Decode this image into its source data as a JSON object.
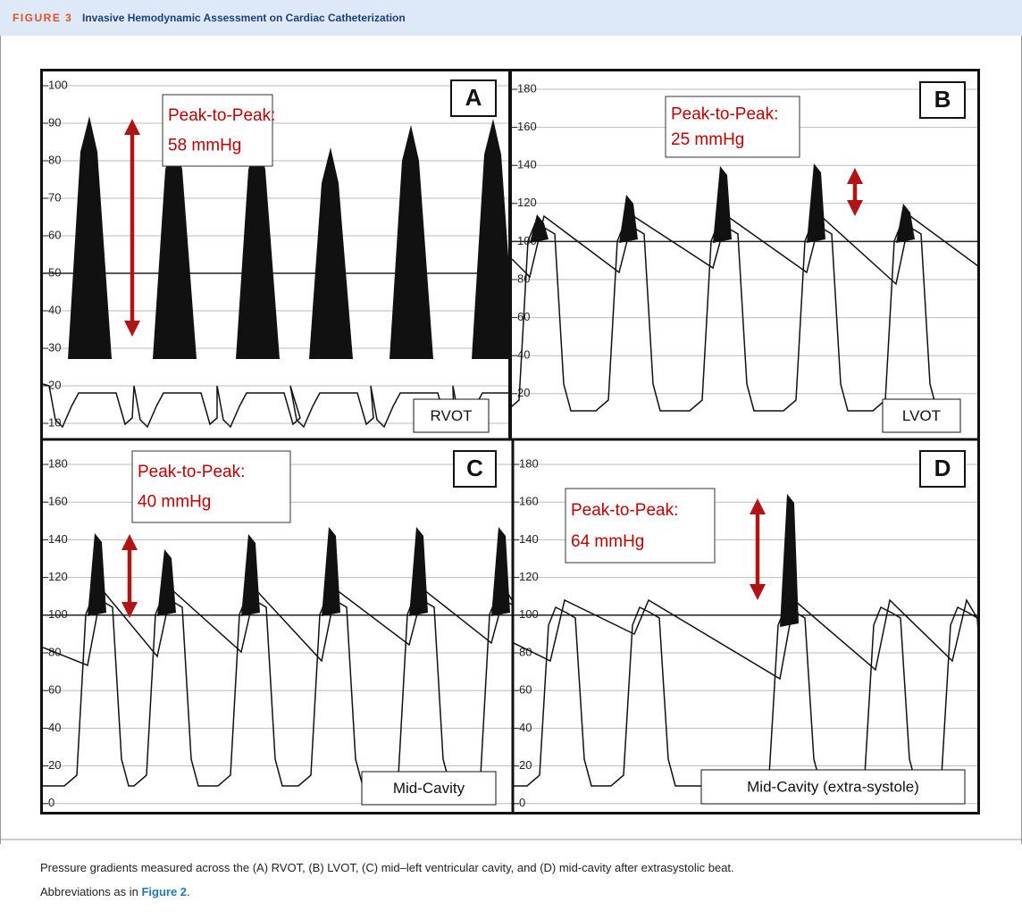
{
  "header": {
    "label": "FIGURE 3",
    "title": "Invasive Hemodynamic Assessment on Cardiac Catheterization"
  },
  "panels": [
    {
      "letter": "A",
      "annotation": [
        "Peak-to-Peak:",
        "58 mmHg"
      ],
      "label": "RVOT",
      "ticks": [
        "100",
        "90",
        "80",
        "70",
        "60",
        "50",
        "40",
        "30",
        "20",
        "10"
      ]
    },
    {
      "letter": "B",
      "annotation": [
        "Peak-to-Peak:",
        "25 mmHg"
      ],
      "label": "LVOT",
      "ticks": [
        "180",
        "160",
        "140",
        "120",
        "100",
        "80",
        "60",
        "40",
        "20"
      ]
    },
    {
      "letter": "C",
      "annotation": [
        "Peak-to-Peak:",
        "40 mmHg"
      ],
      "label": "Mid-Cavity",
      "ticks": [
        "180",
        "160",
        "140",
        "120",
        "100",
        "80",
        "60",
        "40",
        "20",
        "0"
      ]
    },
    {
      "letter": "D",
      "annotation": [
        "Peak-to-Peak:",
        "64 mmHg"
      ],
      "label": "Mid-Cavity (extra-systole)",
      "ticks": [
        "180",
        "160",
        "140",
        "120",
        "100",
        "80",
        "60",
        "40",
        "20",
        "0"
      ]
    }
  ],
  "caption": {
    "text": "Pressure gradients measured across the (A) RVOT, (B) LVOT, (C) mid–left ventricular cavity, and (D) mid-cavity after extrasystolic beat.",
    "note_prefix": "Abbreviations as in ",
    "note_link": "Figure 2",
    "note_suffix": "."
  }
}
